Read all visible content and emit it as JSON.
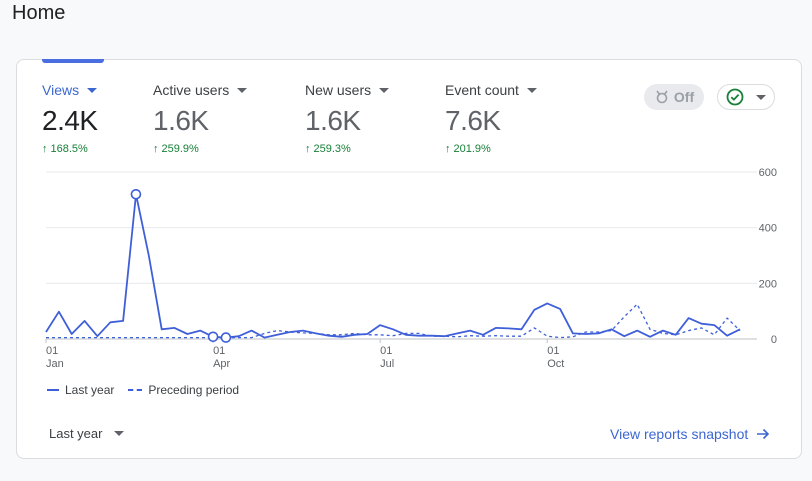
{
  "page": {
    "title": "Home"
  },
  "metrics": [
    {
      "label": "Views",
      "value": "2.4K",
      "change": "168.5%"
    },
    {
      "label": "Active users",
      "value": "1.6K",
      "change": "259.9%"
    },
    {
      "label": "New users",
      "value": "1.6K",
      "change": "259.3%"
    },
    {
      "label": "Event count",
      "value": "7.6K",
      "change": "201.9%"
    }
  ],
  "controls": {
    "insights_toggle": "Off",
    "status_icon": "check-circle-icon",
    "period_select": "Last year",
    "view_link": "View reports snapshot"
  },
  "colors": {
    "accent": "#3c67d1",
    "line": "#3f5fd9",
    "positive": "#188038"
  },
  "chart_data": {
    "type": "line",
    "title": "",
    "xlabel": "",
    "ylabel": "",
    "ylim": [
      0,
      600
    ],
    "y_ticks": [
      0,
      200,
      400,
      600
    ],
    "x_ticks": [
      {
        "index": 0,
        "day": "01",
        "month": "Jan"
      },
      {
        "index": 13,
        "day": "01",
        "month": "Apr"
      },
      {
        "index": 26,
        "day": "01",
        "month": "Jul"
      },
      {
        "index": 39,
        "day": "01",
        "month": "Oct"
      }
    ],
    "legend": [
      "Last year",
      "Preceding period"
    ],
    "series": [
      {
        "name": "Last year",
        "style": "solid",
        "values": [
          25,
          98,
          18,
          65,
          10,
          60,
          65,
          520,
          300,
          35,
          40,
          18,
          30,
          8,
          5,
          10,
          30,
          5,
          15,
          25,
          30,
          20,
          12,
          8,
          15,
          18,
          50,
          35,
          15,
          12,
          12,
          10,
          20,
          30,
          15,
          40,
          38,
          35,
          105,
          128,
          108,
          20,
          18,
          20,
          35,
          10,
          30,
          8,
          30,
          15,
          75,
          55,
          50,
          12,
          35
        ],
        "markers": [
          7,
          13,
          14
        ]
      },
      {
        "name": "Preceding period",
        "style": "dashed",
        "values": [
          5,
          5,
          5,
          5,
          5,
          5,
          5,
          5,
          5,
          5,
          5,
          5,
          5,
          5,
          5,
          5,
          5,
          20,
          30,
          25,
          22,
          20,
          15,
          15,
          20,
          15,
          15,
          12,
          20,
          20,
          10,
          10,
          8,
          12,
          10,
          12,
          10,
          10,
          40,
          10,
          5,
          8,
          25,
          25,
          30,
          80,
          125,
          35,
          20,
          15,
          30,
          40,
          15,
          75,
          30
        ]
      }
    ]
  }
}
